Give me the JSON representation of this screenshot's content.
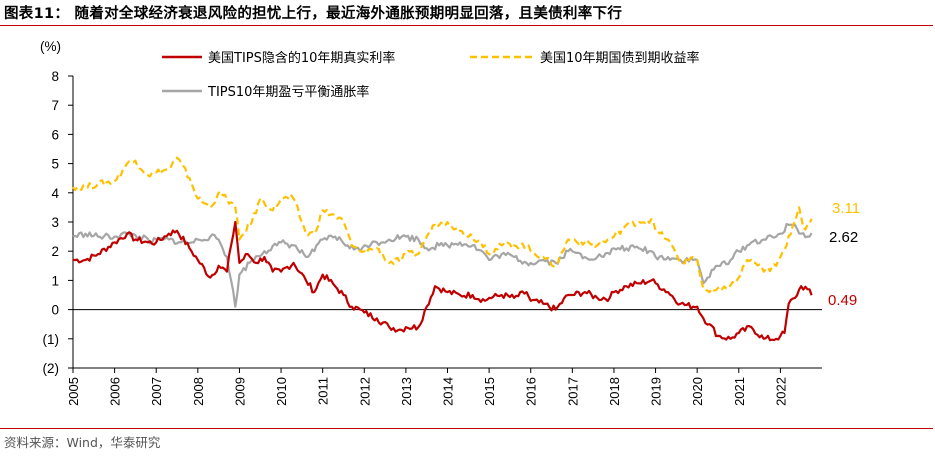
{
  "header": {
    "title": "图表11：  随着对全球经济衰退风险的担忧上行，最近海外通胀预期明显回落，且美债利率下行"
  },
  "footer": {
    "source": "资料来源：Wind，华泰研究"
  },
  "chart_data": {
    "type": "line",
    "ylabel": "(%)",
    "ylim": [
      -2,
      8
    ],
    "yticks": [
      "8",
      "7",
      "6",
      "5",
      "4",
      "3",
      "2",
      "1",
      "0",
      "(1)",
      "(2)"
    ],
    "xlim": [
      2005,
      2023
    ],
    "xticks": [
      "2005",
      "2006",
      "2007",
      "2008",
      "2009",
      "2010",
      "2011",
      "2012",
      "2013",
      "2014",
      "2015",
      "2016",
      "2017",
      "2018",
      "2019",
      "2020",
      "2021",
      "2022"
    ],
    "grid": false,
    "legend_position": "top",
    "series": [
      {
        "name": "美国TIPS隐含的10年期真实利率",
        "color": "#c00000",
        "style": "solid",
        "end_label": "0.49",
        "x": [
          2005,
          2005.3,
          2005.6,
          2006,
          2006.3,
          2006.5,
          2006.8,
          2007,
          2007.3,
          2007.5,
          2007.8,
          2008,
          2008.3,
          2008.5,
          2008.7,
          2008.8,
          2008.9,
          2009,
          2009.2,
          2009.4,
          2009.6,
          2009.8,
          2010,
          2010.3,
          2010.6,
          2010.8,
          2011,
          2011.3,
          2011.5,
          2011.7,
          2011.9,
          2012,
          2012.3,
          2012.6,
          2012.9,
          2013,
          2013.3,
          2013.5,
          2013.7,
          2014,
          2014.3,
          2014.6,
          2014.9,
          2015,
          2015.3,
          2015.6,
          2015.9,
          2016,
          2016.3,
          2016.6,
          2016.9,
          2017,
          2017.3,
          2017.6,
          2017.9,
          2018,
          2018.3,
          2018.6,
          2018.9,
          2019,
          2019.3,
          2019.6,
          2019.9,
          2020,
          2020.15,
          2020.3,
          2020.5,
          2020.8,
          2021,
          2021.3,
          2021.6,
          2021.9,
          2022,
          2022.1,
          2022.2,
          2022.35,
          2022.5,
          2022.65,
          2022.75
        ],
        "y": [
          1.7,
          1.7,
          1.9,
          2.3,
          2.6,
          2.4,
          2.3,
          2.3,
          2.6,
          2.7,
          2.1,
          1.7,
          1.1,
          1.5,
          1.3,
          2.2,
          3.0,
          1.6,
          1.9,
          1.6,
          1.8,
          1.3,
          1.3,
          1.6,
          1.0,
          0.6,
          1.2,
          0.8,
          0.5,
          0.1,
          0.0,
          -0.1,
          -0.3,
          -0.6,
          -0.7,
          -0.6,
          -0.6,
          0.1,
          0.8,
          0.6,
          0.5,
          0.5,
          0.3,
          0.4,
          0.5,
          0.4,
          0.6,
          0.3,
          0.2,
          0.0,
          0.5,
          0.5,
          0.6,
          0.4,
          0.4,
          0.6,
          0.8,
          0.9,
          1.0,
          0.9,
          0.6,
          0.2,
          0.1,
          0.1,
          -0.3,
          -0.5,
          -0.9,
          -1.0,
          -0.8,
          -0.6,
          -1.0,
          -1.0,
          -0.9,
          -0.8,
          0.2,
          0.4,
          0.8,
          0.7,
          0.49
        ]
      },
      {
        "name": "美国10年期国债到期收益率",
        "color": "#ffc000",
        "style": "dashed",
        "end_label": "3.11",
        "x": [
          2005,
          2005.3,
          2005.6,
          2006,
          2006.3,
          2006.5,
          2006.8,
          2007,
          2007.3,
          2007.5,
          2007.8,
          2008,
          2008.3,
          2008.5,
          2008.7,
          2008.9,
          2009,
          2009.3,
          2009.5,
          2009.8,
          2010,
          2010.3,
          2010.6,
          2010.8,
          2011,
          2011.3,
          2011.5,
          2011.7,
          2011.9,
          2012,
          2012.3,
          2012.6,
          2012.9,
          2013,
          2013.3,
          2013.5,
          2013.7,
          2014,
          2014.3,
          2014.6,
          2014.9,
          2015,
          2015.3,
          2015.6,
          2015.9,
          2016,
          2016.3,
          2016.6,
          2016.9,
          2017,
          2017.3,
          2017.6,
          2017.9,
          2018,
          2018.3,
          2018.6,
          2018.9,
          2019,
          2019.3,
          2019.6,
          2019.9,
          2020,
          2020.15,
          2020.3,
          2020.6,
          2020.9,
          2021,
          2021.2,
          2021.4,
          2021.6,
          2021.9,
          2022,
          2022.15,
          2022.3,
          2022.45,
          2022.55,
          2022.65,
          2022.75
        ],
        "y": [
          4.2,
          4.2,
          4.3,
          4.4,
          5.0,
          5.1,
          4.6,
          4.7,
          4.8,
          5.2,
          4.5,
          3.8,
          3.5,
          4.0,
          3.8,
          3.5,
          2.4,
          3.0,
          3.8,
          3.4,
          3.8,
          3.8,
          2.6,
          2.6,
          3.4,
          3.2,
          3.0,
          2.2,
          2.0,
          2.0,
          2.1,
          1.6,
          1.7,
          1.9,
          1.9,
          2.5,
          2.9,
          3.0,
          2.7,
          2.5,
          2.2,
          1.9,
          2.2,
          2.2,
          2.2,
          2.0,
          1.8,
          1.5,
          2.4,
          2.4,
          2.3,
          2.2,
          2.4,
          2.5,
          2.9,
          3.0,
          3.1,
          2.7,
          2.4,
          1.6,
          1.8,
          1.7,
          0.7,
          0.6,
          0.7,
          0.9,
          1.1,
          1.7,
          1.6,
          1.3,
          1.5,
          1.8,
          2.2,
          2.9,
          3.5,
          2.8,
          2.9,
          3.11
        ]
      },
      {
        "name": "TIPS10年期盈亏平衡通胀率",
        "color": "#a6a6a6",
        "style": "solid",
        "end_label": "2.62",
        "x": [
          2005,
          2005.3,
          2005.6,
          2006,
          2006.3,
          2006.6,
          2006.9,
          2007,
          2007.3,
          2007.6,
          2007.9,
          2008,
          2008.3,
          2008.5,
          2008.7,
          2008.8,
          2008.9,
          2009,
          2009.3,
          2009.6,
          2009.9,
          2010,
          2010.3,
          2010.6,
          2010.8,
          2011,
          2011.3,
          2011.6,
          2011.9,
          2012,
          2012.3,
          2012.6,
          2012.9,
          2013,
          2013.3,
          2013.5,
          2013.8,
          2014,
          2014.3,
          2014.6,
          2014.9,
          2015,
          2015.3,
          2015.6,
          2015.9,
          2016,
          2016.3,
          2016.6,
          2016.9,
          2017,
          2017.3,
          2017.6,
          2017.9,
          2018,
          2018.3,
          2018.6,
          2018.9,
          2019,
          2019.3,
          2019.6,
          2019.9,
          2020,
          2020.15,
          2020.25,
          2020.5,
          2020.8,
          2021,
          2021.3,
          2021.6,
          2021.9,
          2022,
          2022.2,
          2022.35,
          2022.5,
          2022.65,
          2022.75
        ],
        "y": [
          2.5,
          2.6,
          2.5,
          2.5,
          2.6,
          2.5,
          2.3,
          2.4,
          2.4,
          2.3,
          2.3,
          2.4,
          2.5,
          2.4,
          1.8,
          1.0,
          0.1,
          1.2,
          1.7,
          2.0,
          2.2,
          2.3,
          2.2,
          1.8,
          2.0,
          2.4,
          2.5,
          2.2,
          2.0,
          2.2,
          2.3,
          2.4,
          2.5,
          2.5,
          2.4,
          2.1,
          2.2,
          2.2,
          2.3,
          2.2,
          1.9,
          1.7,
          1.9,
          1.8,
          1.6,
          1.6,
          1.7,
          1.6,
          2.0,
          2.0,
          1.8,
          1.8,
          1.9,
          2.1,
          2.1,
          2.1,
          2.0,
          1.8,
          1.8,
          1.7,
          1.7,
          1.7,
          0.9,
          1.1,
          1.5,
          1.7,
          2.0,
          2.3,
          2.4,
          2.5,
          2.6,
          2.9,
          2.9,
          2.6,
          2.5,
          2.62
        ]
      }
    ]
  }
}
